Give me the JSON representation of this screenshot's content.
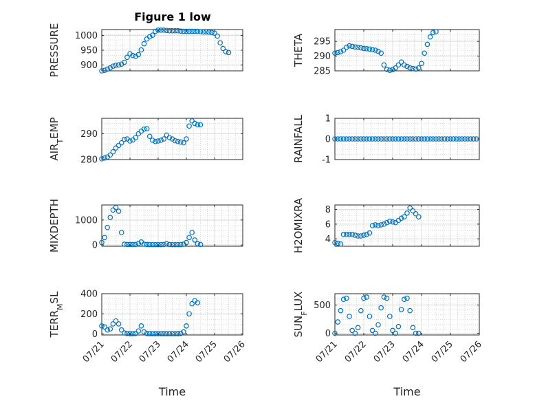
{
  "title": "Figure 1 low",
  "colors": {
    "marker": "#0072bd",
    "axis": "#262626",
    "grid": "#b8b8b8",
    "background": "#ffffff"
  },
  "chart_data": [
    {
      "id": "pressure",
      "type": "scatter",
      "ylabel": "PRESSURE",
      "xlabel": "",
      "xtick_labels": [],
      "xlim": [
        0,
        5
      ],
      "ylim": [
        880,
        1020
      ],
      "yticks": [
        900,
        950,
        1000
      ],
      "grid": true,
      "marker": "open-circle",
      "x": [
        0.0,
        0.1,
        0.2,
        0.3,
        0.4,
        0.5,
        0.6,
        0.7,
        0.8,
        0.9,
        1.0,
        1.1,
        1.2,
        1.3,
        1.4,
        1.5,
        1.6,
        1.7,
        1.8,
        1.9,
        2.0,
        2.1,
        2.2,
        2.3,
        2.4,
        2.5,
        2.6,
        2.7,
        2.8,
        2.9,
        3.0,
        3.1,
        3.2,
        3.3,
        3.4,
        3.5,
        3.6,
        3.7,
        3.8,
        3.9,
        4.0,
        4.1,
        4.2,
        4.3,
        4.4,
        4.5,
        4.6,
        4.7,
        4.8,
        4.9
      ],
      "y": [
        880,
        882,
        886,
        890,
        896,
        899,
        900,
        903,
        909,
        926,
        938,
        932,
        929,
        935,
        951,
        972,
        988,
        996,
        1001,
        1014,
        1018,
        1018,
        1018,
        1017,
        1016,
        1016,
        1016,
        1016,
        1015,
        1014,
        1014,
        1014,
        1014,
        1014,
        1014,
        1013,
        1012,
        1012,
        1011,
        1010,
        1008,
        998,
        975,
        956,
        945,
        942,
        null,
        null,
        null,
        null
      ]
    },
    {
      "id": "theta",
      "type": "scatter",
      "ylabel": "THETA",
      "xlabel": "",
      "xtick_labels": [],
      "xlim": [
        0,
        5
      ],
      "ylim": [
        285,
        299
      ],
      "yticks": [
        285,
        290,
        295
      ],
      "grid": true,
      "marker": "open-circle",
      "x": [
        0.0,
        0.1,
        0.2,
        0.3,
        0.4,
        0.5,
        0.6,
        0.7,
        0.8,
        0.9,
        1.0,
        1.1,
        1.2,
        1.3,
        1.4,
        1.5,
        1.6,
        1.7,
        1.8,
        1.9,
        2.0,
        2.1,
        2.2,
        2.3,
        2.4,
        2.5,
        2.6,
        2.7,
        2.8,
        2.9,
        3.0,
        3.1,
        3.2,
        3.3,
        3.4,
        3.5,
        3.6,
        3.7,
        3.8,
        3.9,
        4.0,
        4.1,
        4.2,
        4.3,
        4.4,
        4.5,
        4.6,
        4.7,
        4.8,
        4.9
      ],
      "y": [
        291,
        291.2,
        291.5,
        292,
        293,
        293.5,
        293.3,
        293.1,
        293,
        292.8,
        292.6,
        292.5,
        292.4,
        292.2,
        292,
        291.6,
        291,
        287,
        285.5,
        285.2,
        285.4,
        286,
        287,
        288,
        287,
        286.5,
        286,
        285.8,
        285.6,
        286,
        287.5,
        291,
        294,
        296.5,
        298,
        298.3,
        null,
        null,
        null,
        null,
        null,
        null,
        null,
        null,
        null,
        null,
        null,
        null,
        null,
        null
      ]
    },
    {
      "id": "air_temp",
      "type": "scatter",
      "ylabel": "AIR_TEMP",
      "xlabel": "",
      "xtick_labels": [],
      "xlim": [
        0,
        5
      ],
      "ylim": [
        280,
        296
      ],
      "yticks": [
        280,
        290
      ],
      "grid": true,
      "marker": "open-circle",
      "x": [
        0.0,
        0.1,
        0.2,
        0.3,
        0.4,
        0.5,
        0.6,
        0.7,
        0.8,
        0.9,
        1.0,
        1.1,
        1.2,
        1.3,
        1.4,
        1.5,
        1.6,
        1.7,
        1.8,
        1.9,
        2.0,
        2.1,
        2.2,
        2.3,
        2.4,
        2.5,
        2.6,
        2.7,
        2.8,
        2.9,
        3.0,
        3.1,
        3.2,
        3.3,
        3.4,
        3.5,
        3.6,
        3.7,
        3.8,
        3.9,
        4.0,
        4.1,
        4.2,
        4.3,
        4.4,
        4.5,
        4.6,
        4.7,
        4.8,
        4.9
      ],
      "y": [
        280.3,
        280.6,
        281,
        281.8,
        283,
        284.5,
        285.5,
        286.5,
        287.8,
        288,
        287.2,
        287.6,
        288.5,
        290,
        291,
        291.8,
        292,
        289,
        287.5,
        287,
        287.2,
        287.5,
        288,
        289.5,
        288.5,
        288,
        287.3,
        287,
        286.8,
        286.5,
        288,
        293,
        295,
        294,
        293.5,
        293.5,
        null,
        null,
        null,
        null,
        null,
        null,
        null,
        null,
        null,
        null,
        null,
        null,
        null,
        null
      ]
    },
    {
      "id": "rainfall",
      "type": "scatter",
      "ylabel": "RAINFALL",
      "xlabel": "",
      "xtick_labels": [],
      "xlim": [
        0,
        5
      ],
      "ylim": [
        -1,
        1
      ],
      "yticks": [
        -1,
        0,
        1
      ],
      "grid": true,
      "marker": "open-circle",
      "x": [
        0.0,
        0.1,
        0.2,
        0.3,
        0.4,
        0.5,
        0.6,
        0.7,
        0.8,
        0.9,
        1.0,
        1.1,
        1.2,
        1.3,
        1.4,
        1.5,
        1.6,
        1.7,
        1.8,
        1.9,
        2.0,
        2.1,
        2.2,
        2.3,
        2.4,
        2.5,
        2.6,
        2.7,
        2.8,
        2.9,
        3.0,
        3.1,
        3.2,
        3.3,
        3.4,
        3.5,
        3.6,
        3.7,
        3.8,
        3.9,
        4.0,
        4.1,
        4.2,
        4.3,
        4.4,
        4.5,
        4.6,
        4.7,
        4.8,
        4.9
      ],
      "y": [
        0,
        0,
        0,
        0,
        0,
        0,
        0,
        0,
        0,
        0,
        0,
        0,
        0,
        0,
        0,
        0,
        0,
        0,
        0,
        0,
        0,
        0,
        0,
        0,
        0,
        0,
        0,
        0,
        0,
        0,
        0,
        0,
        0,
        0,
        0,
        0,
        0,
        0,
        0,
        0,
        0,
        0,
        0,
        0,
        0,
        0,
        0,
        0,
        0,
        0
      ]
    },
    {
      "id": "mixdepth",
      "type": "scatter",
      "ylabel": "MIXDEPTH",
      "xlabel": "",
      "xtick_labels": [],
      "xlim": [
        0,
        5
      ],
      "ylim": [
        -50,
        1600
      ],
      "yticks": [
        0,
        1000
      ],
      "grid": true,
      "marker": "open-circle",
      "x": [
        0.0,
        0.1,
        0.2,
        0.3,
        0.4,
        0.5,
        0.6,
        0.7,
        0.8,
        0.9,
        1.0,
        1.1,
        1.2,
        1.3,
        1.4,
        1.5,
        1.6,
        1.7,
        1.8,
        1.9,
        2.0,
        2.1,
        2.2,
        2.3,
        2.4,
        2.5,
        2.6,
        2.7,
        2.8,
        2.9,
        3.0,
        3.1,
        3.2,
        3.3,
        3.4,
        3.5,
        3.6,
        3.7,
        3.8,
        3.9,
        4.0,
        4.1,
        4.2,
        4.3,
        4.4,
        4.5,
        4.6,
        4.7,
        4.8,
        4.9
      ],
      "y": [
        100,
        300,
        700,
        1100,
        1400,
        1500,
        1350,
        500,
        30,
        20,
        20,
        20,
        20,
        60,
        120,
        30,
        20,
        15,
        15,
        15,
        15,
        15,
        20,
        50,
        20,
        15,
        15,
        15,
        15,
        30,
        100,
        300,
        500,
        200,
        50,
        20,
        null,
        null,
        null,
        null,
        null,
        null,
        null,
        null,
        null,
        null,
        null,
        null,
        null,
        null
      ]
    },
    {
      "id": "h2omixra",
      "type": "scatter",
      "ylabel": "H2OMIXRA",
      "xlabel": "",
      "xtick_labels": [],
      "xlim": [
        0,
        5
      ],
      "ylim": [
        3,
        8.6
      ],
      "yticks": [
        4,
        6,
        8
      ],
      "grid": true,
      "marker": "open-circle",
      "x": [
        0.0,
        0.1,
        0.2,
        0.3,
        0.4,
        0.5,
        0.6,
        0.7,
        0.8,
        0.9,
        1.0,
        1.1,
        1.2,
        1.3,
        1.4,
        1.5,
        1.6,
        1.7,
        1.8,
        1.9,
        2.0,
        2.1,
        2.2,
        2.3,
        2.4,
        2.5,
        2.6,
        2.7,
        2.8,
        2.9,
        3.0,
        3.1,
        3.2,
        3.3,
        3.4,
        3.5,
        3.6,
        3.7,
        3.8,
        3.9,
        4.0,
        4.1,
        4.2,
        4.3,
        4.4,
        4.5,
        4.6,
        4.7,
        4.8,
        4.9
      ],
      "y": [
        3.5,
        3.4,
        3.3,
        4.6,
        4.6,
        4.6,
        4.6,
        4.5,
        4.4,
        4.4,
        4.5,
        4.6,
        4.8,
        5.8,
        5.9,
        5.8,
        5.9,
        6.0,
        6.2,
        6.4,
        6.3,
        6.2,
        6.5,
        6.8,
        7.0,
        7.5,
        8.2,
        7.8,
        7.4,
        7.0,
        null,
        null,
        null,
        null,
        null,
        null,
        null,
        null,
        null,
        null,
        null,
        null,
        null,
        null,
        null,
        null,
        null,
        null,
        null,
        null
      ]
    },
    {
      "id": "terr_msl",
      "type": "scatter",
      "ylabel": "TERR_MSL",
      "xlabel": "Time",
      "xtick_labels": [
        "07/21",
        "07/22",
        "07/23",
        "07/24",
        "07/25",
        "07/26"
      ],
      "xlim": [
        0,
        5
      ],
      "ylim": [
        -10,
        400
      ],
      "yticks": [
        0,
        200,
        400
      ],
      "grid": true,
      "marker": "open-circle",
      "x": [
        0.0,
        0.1,
        0.2,
        0.3,
        0.4,
        0.5,
        0.6,
        0.7,
        0.8,
        0.9,
        1.0,
        1.1,
        1.2,
        1.3,
        1.4,
        1.5,
        1.6,
        1.7,
        1.8,
        1.9,
        2.0,
        2.1,
        2.2,
        2.3,
        2.4,
        2.5,
        2.6,
        2.7,
        2.8,
        2.9,
        3.0,
        3.1,
        3.2,
        3.3,
        3.4,
        3.5,
        3.6,
        3.7,
        3.8,
        3.9,
        4.0,
        4.1,
        4.2,
        4.3,
        4.4,
        4.5,
        4.6,
        4.7,
        4.8,
        4.9
      ],
      "y": [
        80,
        70,
        40,
        50,
        100,
        130,
        100,
        40,
        10,
        5,
        3,
        3,
        5,
        30,
        80,
        20,
        5,
        3,
        3,
        3,
        3,
        3,
        3,
        3,
        3,
        3,
        3,
        3,
        5,
        20,
        80,
        200,
        300,
        330,
        310,
        null,
        null,
        null,
        null,
        null,
        null,
        null,
        null,
        null,
        null,
        null,
        null,
        null,
        null,
        null
      ]
    },
    {
      "id": "sun_flux",
      "type": "scatter",
      "ylabel": "SUN_FLUX",
      "xlabel": "Time",
      "xtick_labels": [
        "07/21",
        "07/22",
        "07/23",
        "07/24",
        "07/25",
        "07/26"
      ],
      "xlim": [
        0,
        5
      ],
      "ylim": [
        -30,
        700
      ],
      "yticks": [
        0,
        500
      ],
      "grid": true,
      "marker": "open-circle",
      "x": [
        0.0,
        0.1,
        0.2,
        0.3,
        0.4,
        0.5,
        0.6,
        0.7,
        0.8,
        0.9,
        1.0,
        1.1,
        1.2,
        1.3,
        1.4,
        1.5,
        1.6,
        1.7,
        1.8,
        1.9,
        2.0,
        2.1,
        2.2,
        2.3,
        2.4,
        2.5,
        2.6,
        2.7,
        2.8,
        2.9,
        3.0,
        3.1,
        3.2,
        3.3,
        3.4,
        3.5,
        3.6,
        3.7,
        3.8,
        3.9,
        4.0,
        4.1,
        4.2,
        4.3,
        4.4,
        4.5,
        4.6,
        4.7,
        4.8,
        4.9
      ],
      "y": [
        0,
        200,
        400,
        600,
        620,
        300,
        50,
        0,
        100,
        400,
        620,
        640,
        300,
        50,
        0,
        150,
        450,
        640,
        620,
        300,
        50,
        0,
        120,
        420,
        600,
        620,
        400,
        100,
        0,
        0,
        null,
        null,
        null,
        null,
        null,
        null,
        null,
        null,
        null,
        null,
        null,
        null,
        null,
        null,
        null,
        null,
        null,
        null,
        null,
        null
      ]
    }
  ]
}
